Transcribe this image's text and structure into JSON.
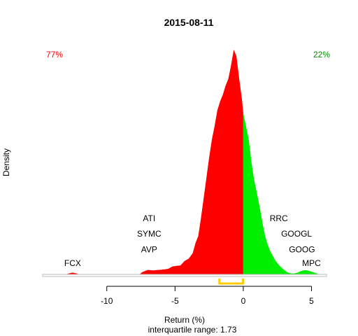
{
  "chart_data": {
    "type": "area",
    "title": "2015-08-11",
    "xlabel": "Return (%)",
    "ylabel": "Density",
    "subtitle": "interquartile range: 1.73",
    "xlim": [
      -14.7,
      6.1
    ],
    "xticks": [
      -10,
      -5,
      0,
      5
    ],
    "tick_labels": [
      "-10",
      "-5",
      "0",
      "5"
    ],
    "iqr": [
      -1.75,
      -0.02
    ],
    "pct_negative": "77%",
    "pct_positive": "22%",
    "colors": {
      "negative": "#ff0000",
      "positive": "#00ee00",
      "iqr": "#ffcc00",
      "baseline": "#bebebe"
    },
    "density": [
      [
        -13.0,
        0
      ],
      [
        -12.8,
        0.004
      ],
      [
        -12.5,
        0.008
      ],
      [
        -12.2,
        0.004
      ],
      [
        -12.0,
        0
      ],
      [
        -7.6,
        0
      ],
      [
        -7.4,
        0.01
      ],
      [
        -7.0,
        0.02
      ],
      [
        -6.6,
        0.018
      ],
      [
        -6.2,
        0.02
      ],
      [
        -5.8,
        0.022
      ],
      [
        -5.5,
        0.025
      ],
      [
        -5.2,
        0.035
      ],
      [
        -4.9,
        0.038
      ],
      [
        -4.6,
        0.04
      ],
      [
        -4.3,
        0.06
      ],
      [
        -4.0,
        0.07
      ],
      [
        -3.7,
        0.095
      ],
      [
        -3.5,
        0.14
      ],
      [
        -3.3,
        0.17
      ],
      [
        -3.1,
        0.25
      ],
      [
        -2.9,
        0.34
      ],
      [
        -2.7,
        0.43
      ],
      [
        -2.5,
        0.52
      ],
      [
        -2.3,
        0.6
      ],
      [
        -2.1,
        0.66
      ],
      [
        -1.9,
        0.73
      ],
      [
        -1.7,
        0.77
      ],
      [
        -1.5,
        0.8
      ],
      [
        -1.3,
        0.84
      ],
      [
        -1.1,
        0.87
      ],
      [
        -0.9,
        0.93
      ],
      [
        -0.7,
        1.0
      ],
      [
        -0.5,
        0.97
      ],
      [
        -0.3,
        0.87
      ],
      [
        -0.1,
        0.78
      ],
      [
        0.0,
        0.72
      ],
      [
        0.2,
        0.66
      ],
      [
        0.4,
        0.6
      ],
      [
        0.6,
        0.5
      ],
      [
        0.8,
        0.42
      ],
      [
        1.0,
        0.36
      ],
      [
        1.2,
        0.3
      ],
      [
        1.4,
        0.23
      ],
      [
        1.6,
        0.17
      ],
      [
        1.8,
        0.13
      ],
      [
        2.0,
        0.1
      ],
      [
        2.2,
        0.078
      ],
      [
        2.4,
        0.058
      ],
      [
        2.6,
        0.042
      ],
      [
        2.8,
        0.03
      ],
      [
        3.0,
        0.02
      ],
      [
        3.2,
        0.01
      ],
      [
        3.4,
        0.006
      ],
      [
        3.6,
        0.004
      ],
      [
        3.8,
        0.005
      ],
      [
        4.0,
        0.008
      ],
      [
        4.2,
        0.014
      ],
      [
        4.4,
        0.018
      ],
      [
        4.6,
        0.019
      ],
      [
        4.8,
        0.016
      ],
      [
        5.1,
        0.01
      ],
      [
        5.4,
        0.004
      ],
      [
        5.6,
        0
      ]
    ],
    "annotations": [
      {
        "text": "FCX",
        "x": -12.5,
        "y": 0.05
      },
      {
        "text": "ATI",
        "x": -6.9,
        "y": 0.25
      },
      {
        "text": "SYMC",
        "x": -6.9,
        "y": 0.18
      },
      {
        "text": "AVP",
        "x": -6.9,
        "y": 0.11
      },
      {
        "text": "RRC",
        "x": 2.6,
        "y": 0.25
      },
      {
        "text": "GOOGL",
        "x": 3.9,
        "y": 0.18
      },
      {
        "text": "GOOG",
        "x": 4.3,
        "y": 0.11
      },
      {
        "text": "MPC",
        "x": 5.0,
        "y": 0.05
      }
    ]
  }
}
